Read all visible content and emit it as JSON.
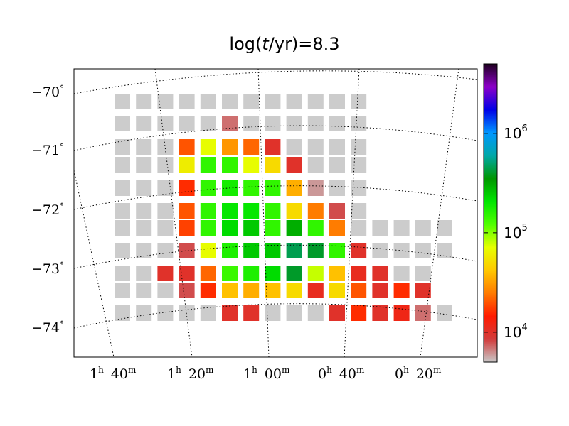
{
  "chart_data": {
    "type": "heatmap",
    "title_parts": [
      "log(",
      "t",
      "/yr)=8.3"
    ],
    "xlabel": "",
    "ylabel": "",
    "colorbar": {
      "scale": "log",
      "range": [
        5000,
        5000000
      ],
      "ticks": [
        {
          "base": "10",
          "exp": "4",
          "value": 10000
        },
        {
          "base": "10",
          "exp": "5",
          "value": 100000
        },
        {
          "base": "10",
          "exp": "6",
          "value": 1000000
        }
      ],
      "colormap": [
        "#c8c8c8",
        "#d23c3c",
        "#ff1a00",
        "#ff7a00",
        "#ffc800",
        "#e6ff00",
        "#50ff00",
        "#00e600",
        "#009600",
        "#00a8a8",
        "#0096ff",
        "#0000e6",
        "#8c00c8",
        "#1e001e"
      ]
    },
    "ra_ticks": [
      {
        "h": "1",
        "hu": "h",
        "m": "40",
        "mu": "m"
      },
      {
        "h": "1",
        "hu": "h",
        "m": "20",
        "mu": "m"
      },
      {
        "h": "1",
        "hu": "h",
        "m": "00",
        "mu": "m"
      },
      {
        "h": "0",
        "hu": "h",
        "m": "40",
        "mu": "m"
      },
      {
        "h": "0",
        "hu": "h",
        "m": "20",
        "mu": "m"
      }
    ],
    "dec_ticks": [
      {
        "label": "−70",
        "deg": "°",
        "value": -70
      },
      {
        "label": "−71",
        "deg": "°",
        "value": -71
      },
      {
        "label": "−72",
        "deg": "°",
        "value": -72
      },
      {
        "label": "−73",
        "deg": "°",
        "value": -73
      },
      {
        "label": "−74",
        "deg": "°",
        "value": -74
      }
    ],
    "grid": true,
    "rows": [
      [
        null,
        null,
        null,
        null,
        null,
        null,
        null,
        null,
        null,
        null,
        null,
        null
      ],
      [
        null,
        null,
        null,
        null,
        null,
        7000,
        null,
        null,
        null,
        null,
        null,
        null
      ],
      [
        null,
        null,
        null,
        20000,
        70000,
        30000,
        22000,
        10000,
        null,
        null,
        null,
        null
      ],
      [
        null,
        null,
        null,
        60000,
        150000,
        150000,
        70000,
        50000,
        10000,
        null,
        null,
        null
      ],
      [
        null,
        null,
        null,
        16000,
        150000,
        180000,
        150000,
        150000,
        35000,
        6000,
        null,
        null
      ],
      [
        null,
        null,
        null,
        20000,
        150000,
        200000,
        200000,
        150000,
        50000,
        25000,
        8000,
        null
      ],
      [
        null,
        null,
        null,
        18000,
        150000,
        220000,
        250000,
        150000,
        300000,
        150000,
        25000,
        null,
        null,
        null,
        null,
        null
      ],
      [
        null,
        null,
        null,
        8000,
        70000,
        170000,
        250000,
        250000,
        450000,
        400000,
        150000,
        10000,
        null,
        null,
        null,
        null
      ],
      [
        null,
        null,
        10000,
        10000,
        22000,
        140000,
        170000,
        220000,
        400000,
        80000,
        40000,
        11000,
        10000,
        null,
        null
      ],
      [
        null,
        null,
        null,
        8000,
        16000,
        40000,
        35000,
        40000,
        50000,
        11000,
        50000,
        20000,
        10000,
        16000,
        10000
      ],
      [
        null,
        null,
        null,
        null,
        null,
        10000,
        10000,
        null,
        null,
        null,
        10000,
        16000,
        10000,
        12000,
        7000,
        null
      ]
    ]
  }
}
